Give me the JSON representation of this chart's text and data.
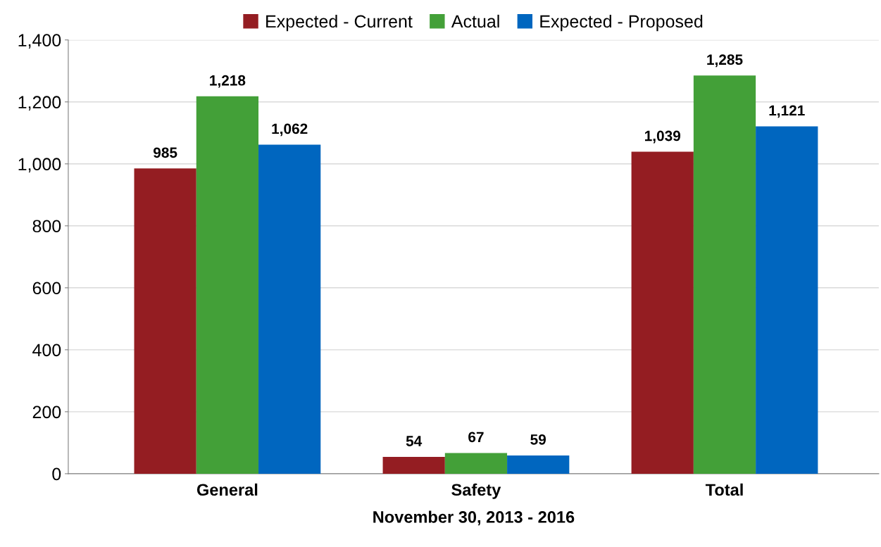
{
  "chart_data": {
    "type": "bar",
    "xlabel": "November 30, 2013 - 2016",
    "categories": [
      "General",
      "Safety",
      "Total"
    ],
    "series": [
      {
        "name": "Expected - Current",
        "color": "#941d22",
        "values": [
          985,
          54,
          1039
        ],
        "value_labels": [
          "985",
          "54",
          "1,039"
        ]
      },
      {
        "name": "Actual",
        "color": "#43a038",
        "values": [
          1218,
          67,
          1285
        ],
        "value_labels": [
          "1,218",
          "67",
          "1,285"
        ]
      },
      {
        "name": "Expected - Proposed",
        "color": "#0066bf",
        "values": [
          1062,
          59,
          1121
        ],
        "value_labels": [
          "1,062",
          "59",
          "1,121"
        ]
      }
    ],
    "ylim": [
      0,
      1400
    ],
    "yticks": [
      0,
      200,
      400,
      600,
      800,
      {
        "value": 1000,
        "label": "1,000"
      },
      {
        "value": 1200,
        "label": "1,200"
      },
      {
        "value": 1400,
        "label": "1,400"
      }
    ],
    "grid": "y",
    "legend": "top"
  }
}
